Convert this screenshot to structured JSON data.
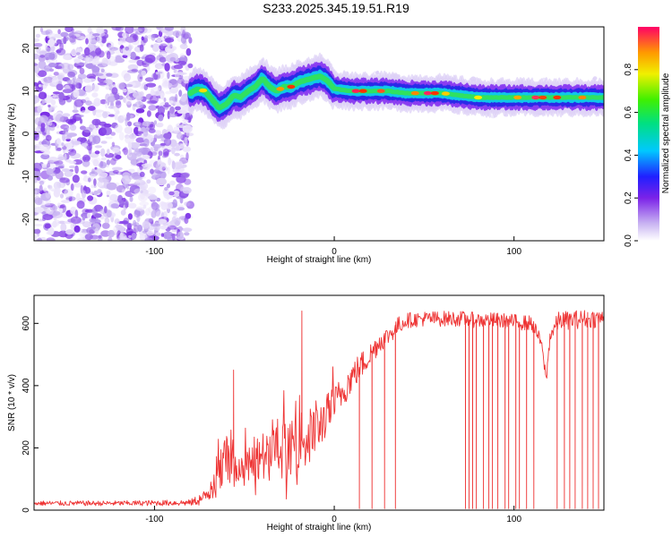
{
  "figure": {
    "title": "S233.2025.345.19.51.R19"
  },
  "chart_data": [
    {
      "type": "heatmap",
      "panel": "spectrogram",
      "xlabel": "Height of straight line (km)",
      "ylabel": "Frequency (Hz)",
      "xlim": [
        -167,
        150
      ],
      "ylim": [
        -25,
        25
      ],
      "xticks": [
        -100,
        0,
        100
      ],
      "xtick_labels": [
        "-100",
        "0",
        "100"
      ],
      "yticks": [
        -20,
        -10,
        0,
        10,
        20
      ],
      "ytick_labels": [
        "-20",
        "-10",
        "0",
        "10",
        "20"
      ],
      "noise_region_x": [
        -167,
        -80
      ],
      "signal_track": {
        "x": [
          -80,
          -76,
          -72,
          -68,
          -64,
          -60,
          -56,
          -52,
          -48,
          -44,
          -40,
          -36,
          -32,
          -28,
          -24,
          -20,
          -16,
          -12,
          -8,
          -4,
          0,
          10,
          20,
          30,
          40,
          50,
          60,
          70,
          80,
          90,
          100,
          110,
          120,
          130,
          140,
          150
        ],
        "freq_hz": [
          9.5,
          10.5,
          10,
          8,
          6,
          7,
          9,
          8.5,
          10,
          11,
          13,
          11,
          10,
          11,
          11,
          12,
          12.5,
          13,
          13.5,
          12.5,
          10.5,
          10,
          10,
          10,
          9.5,
          9.5,
          9.5,
          9,
          8.5,
          8.5,
          8.5,
          8.5,
          8.5,
          8.5,
          8.5,
          8.5
        ]
      },
      "colorbar": {
        "label": "Normalized spectral amplitude",
        "range": [
          0,
          1
        ],
        "ticks": [
          0.0,
          0.2,
          0.4,
          0.6,
          0.8
        ],
        "tick_labels": [
          "0.0",
          "0.2",
          "0.4",
          "0.6",
          "0.8"
        ]
      }
    },
    {
      "type": "line",
      "panel": "snr",
      "xlabel": "Height of straight line (km)",
      "ylabel": "SNR (10 * v/v)",
      "xlim": [
        -167,
        150
      ],
      "ylim": [
        0,
        690
      ],
      "xticks": [
        -100,
        0,
        100
      ],
      "xtick_labels": [
        "-100",
        "0",
        "100"
      ],
      "yticks": [
        0,
        200,
        400,
        600
      ],
      "ytick_labels": [
        "0",
        "200",
        "400",
        "600"
      ],
      "color": "#ee3333",
      "envelope": {
        "x": [
          -167,
          -120,
          -80,
          -72,
          -68,
          -64,
          -60,
          -58,
          -55,
          -50,
          -45,
          -40,
          -35,
          -30,
          -25,
          -20,
          -15,
          -10,
          -5,
          0,
          10,
          20,
          25,
          30,
          35,
          40,
          50,
          60,
          70,
          80,
          90,
          100,
          110,
          115,
          118,
          120,
          125,
          130,
          140,
          150
        ],
        "center": [
          22,
          22,
          24,
          40,
          80,
          120,
          180,
          200,
          150,
          130,
          150,
          160,
          180,
          190,
          200,
          220,
          230,
          260,
          300,
          340,
          430,
          500,
          540,
          560,
          590,
          610,
          615,
          615,
          615,
          610,
          610,
          605,
          600,
          540,
          420,
          560,
          610,
          610,
          615,
          615
        ],
        "noise": [
          8,
          8,
          10,
          25,
          50,
          70,
          90,
          90,
          60,
          60,
          70,
          80,
          80,
          90,
          90,
          90,
          90,
          80,
          70,
          60,
          50,
          40,
          35,
          30,
          30,
          25,
          25,
          25,
          25,
          25,
          25,
          25,
          25,
          20,
          20,
          25,
          30,
          30,
          30,
          30
        ]
      },
      "spikes_up": [
        {
          "x": -56,
          "y": 450
        },
        {
          "x": -18,
          "y": 640
        }
      ],
      "dropouts_x": [
        14,
        21,
        28,
        34,
        73,
        75,
        77,
        79,
        83,
        86,
        88,
        91,
        95,
        97,
        101,
        103,
        107,
        111,
        124,
        128,
        131,
        134,
        138,
        141,
        144,
        147
      ]
    }
  ]
}
